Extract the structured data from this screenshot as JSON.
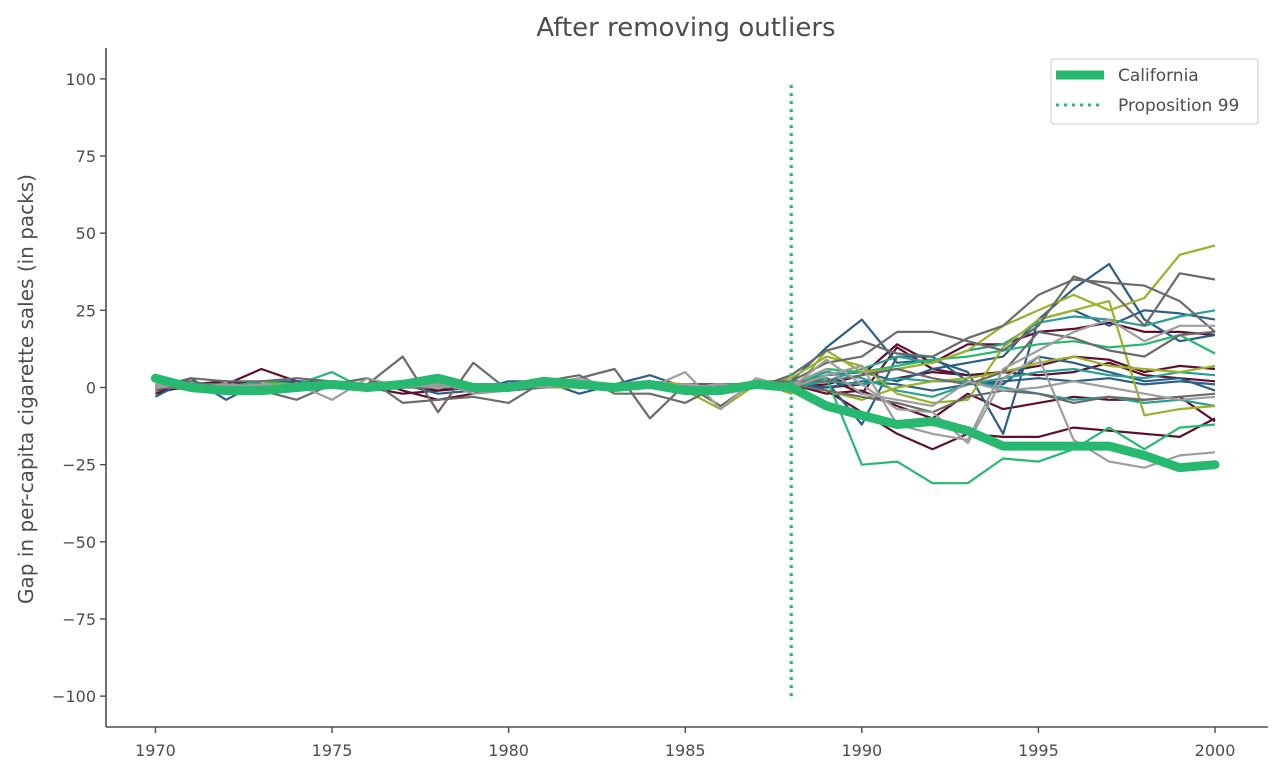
{
  "chart_data": {
    "type": "line",
    "title": "After removing outliers",
    "xlabel": "",
    "ylabel": "Gap in per-capita cigarette sales (in packs)",
    "xlim": [
      1968.6,
      2001.5
    ],
    "ylim": [
      -110,
      110
    ],
    "x_ticks": [
      "1970",
      "1975",
      "1980",
      "1985",
      "1990",
      "1995",
      "2000"
    ],
    "x_tick_values": [
      1970,
      1975,
      1980,
      1985,
      1990,
      1995,
      2000
    ],
    "y_ticks": [
      "−100",
      "−75",
      "−50",
      "−25",
      "0",
      "25",
      "50",
      "75",
      "100"
    ],
    "y_tick_values": [
      -100,
      -75,
      -50,
      -25,
      0,
      25,
      50,
      75,
      100
    ],
    "grid": false,
    "legend_position": "top-right",
    "x": [
      1970,
      1971,
      1972,
      1973,
      1974,
      1975,
      1976,
      1977,
      1978,
      1979,
      1980,
      1981,
      1982,
      1983,
      1984,
      1985,
      1986,
      1987,
      1988,
      1989,
      1990,
      1991,
      1992,
      1993,
      1994,
      1995,
      1996,
      1997,
      1998,
      1999,
      2000
    ],
    "highlight": {
      "name": "California",
      "color": "#27b96f",
      "values": [
        3,
        0,
        -1,
        -1,
        0,
        1,
        0,
        1,
        3,
        0,
        0,
        2,
        1,
        0,
        1,
        -1,
        -1,
        1,
        0,
        -6,
        -9,
        -12,
        -11,
        -14,
        -19,
        -19,
        -19,
        -19,
        -22,
        -26,
        -25
      ]
    },
    "intervention": {
      "name": "Proposition 99",
      "x": 1988,
      "y_range": [
        -100,
        98
      ],
      "color": "#27b96f"
    },
    "series": [
      {
        "color": "#5e0f2e",
        "values": [
          -1,
          0,
          1,
          6,
          2,
          1,
          3,
          -1,
          -4,
          -2,
          1,
          1,
          2,
          1,
          0,
          -1,
          0,
          1,
          2,
          -1,
          -8,
          -15,
          -20,
          -15,
          -16,
          -16,
          -13,
          -14,
          -15,
          -16,
          -10
        ]
      },
      {
        "color": "#5e0f2e",
        "values": [
          0,
          1,
          1,
          0,
          2,
          1,
          0,
          -2,
          -1,
          0,
          1,
          1,
          0,
          1,
          1,
          0,
          0,
          1,
          1,
          3,
          -2,
          13,
          6,
          4,
          5,
          4,
          5,
          8,
          4,
          3,
          2
        ]
      },
      {
        "color": "#5e0f2e",
        "values": [
          -2,
          1,
          2,
          1,
          0,
          1,
          1,
          1,
          0,
          0,
          0,
          0,
          1,
          1,
          0,
          0,
          1,
          1,
          1,
          -2,
          -1,
          -6,
          -10,
          -2,
          -7,
          -5,
          -3,
          -4,
          -4,
          -3,
          -11
        ]
      },
      {
        "color": "#5e0f2e",
        "values": [
          0,
          0,
          -1,
          1,
          1,
          2,
          0,
          1,
          -1,
          1,
          0,
          1,
          0,
          1,
          1,
          1,
          1,
          1,
          0,
          1,
          4,
          14,
          8,
          14,
          14,
          18,
          19,
          21,
          18,
          18,
          17
        ]
      },
      {
        "color": "#5e0f2e",
        "values": [
          1,
          0,
          0,
          1,
          0,
          1,
          1,
          0,
          1,
          0,
          1,
          0,
          1,
          0,
          1,
          0,
          1,
          0,
          1,
          0,
          1,
          3,
          5,
          4,
          5,
          7,
          10,
          9,
          5,
          7,
          6
        ]
      },
      {
        "color": "#2b5f85",
        "values": [
          -3,
          3,
          -4,
          2,
          2,
          2,
          0,
          1,
          -2,
          -1,
          2,
          2,
          -2,
          1,
          4,
          0,
          -1,
          1,
          2,
          13,
          22,
          8,
          9,
          5,
          -15,
          22,
          32,
          40,
          22,
          15,
          17
        ]
      },
      {
        "color": "#2b5f85",
        "values": [
          1,
          0,
          1,
          0,
          1,
          0,
          1,
          0,
          1,
          0,
          1,
          0,
          1,
          0,
          1,
          0,
          1,
          0,
          1,
          2,
          -12,
          10,
          10,
          2,
          1,
          10,
          8,
          5,
          2,
          3,
          -1
        ]
      },
      {
        "color": "#2b5f85",
        "values": [
          0,
          1,
          1,
          0,
          1,
          1,
          0,
          1,
          1,
          0,
          0,
          1,
          1,
          0,
          1,
          0,
          0,
          1,
          1,
          4,
          5,
          2,
          6,
          8,
          10,
          22,
          25,
          20,
          25,
          24,
          22
        ]
      },
      {
        "color": "#2b5f85",
        "values": [
          0,
          0,
          1,
          1,
          0,
          0,
          1,
          1,
          0,
          0,
          1,
          1,
          0,
          0,
          1,
          1,
          0,
          0,
          1,
          0,
          2,
          1,
          -1,
          1,
          2,
          3,
          2,
          3,
          1,
          2,
          1
        ]
      },
      {
        "color": "#2b9e95",
        "values": [
          0,
          1,
          0,
          2,
          1,
          0,
          1,
          0,
          1,
          1,
          0,
          1,
          0,
          1,
          0,
          1,
          0,
          1,
          0,
          2,
          6,
          10,
          8,
          12,
          14,
          21,
          23,
          22,
          20,
          23,
          25
        ]
      },
      {
        "color": "#2b9e95",
        "values": [
          1,
          0,
          1,
          0,
          1,
          1,
          0,
          1,
          0,
          1,
          1,
          0,
          1,
          0,
          1,
          1,
          0,
          1,
          1,
          5,
          3,
          -1,
          -3,
          1,
          3,
          5,
          6,
          4,
          3,
          5,
          4
        ]
      },
      {
        "color": "#2b9e95",
        "values": [
          0,
          1,
          0,
          1,
          0,
          1,
          1,
          0,
          1,
          0,
          1,
          0,
          1,
          1,
          0,
          0,
          1,
          0,
          1,
          2,
          1,
          3,
          2,
          2,
          0,
          -2,
          -4,
          -3,
          -5,
          -4,
          -6
        ]
      },
      {
        "color": "#27b96f",
        "values": [
          1,
          -1,
          0,
          2,
          1,
          5,
          -1,
          2,
          0,
          1,
          1,
          3,
          0,
          1,
          1,
          0,
          1,
          0,
          2,
          3,
          -25,
          -24,
          -31,
          -31,
          -23,
          -24,
          -20,
          -13,
          -20,
          -13,
          -12
        ]
      },
      {
        "color": "#27b96f",
        "values": [
          0,
          1,
          1,
          0,
          1,
          0,
          1,
          1,
          0,
          1,
          0,
          1,
          1,
          0,
          1,
          0,
          1,
          1,
          0,
          6,
          5,
          7,
          9,
          10,
          12,
          14,
          15,
          13,
          14,
          17,
          11
        ]
      },
      {
        "color": "#9ab22a",
        "values": [
          0,
          0,
          1,
          0,
          1,
          0,
          0,
          1,
          0,
          1,
          0,
          0,
          1,
          0,
          1,
          -1,
          -7,
          1,
          3,
          10,
          7,
          -2,
          -5,
          -4,
          13,
          22,
          25,
          28,
          -9,
          -7,
          -6
        ]
      },
      {
        "color": "#9ab22a",
        "values": [
          1,
          0,
          0,
          1,
          1,
          0,
          1,
          0,
          0,
          1,
          1,
          0,
          0,
          1,
          2,
          1,
          0,
          2,
          -2,
          12,
          5,
          6,
          8,
          12,
          20,
          25,
          30,
          25,
          29,
          43,
          46
        ]
      },
      {
        "color": "#9ab22a",
        "values": [
          0,
          1,
          0,
          0,
          1,
          1,
          0,
          0,
          1,
          1,
          0,
          0,
          1,
          1,
          0,
          0,
          1,
          0,
          1,
          -1,
          -4,
          0,
          2,
          3,
          5,
          8,
          10,
          7,
          6,
          5,
          7
        ]
      },
      {
        "color": "#6b6b6b",
        "values": [
          0,
          3,
          2,
          2,
          3,
          2,
          1,
          10,
          -8,
          8,
          -1,
          0,
          3,
          6,
          -10,
          1,
          -6,
          2,
          2,
          8,
          10,
          18,
          18,
          15,
          12,
          20,
          36,
          32,
          20,
          37,
          35
        ]
      },
      {
        "color": "#6b6b6b",
        "values": [
          -1,
          2,
          0,
          -1,
          -4,
          1,
          3,
          -5,
          -4,
          -3,
          -5,
          2,
          4,
          -2,
          -2,
          -5,
          1,
          0,
          4,
          12,
          15,
          11,
          10,
          16,
          20,
          30,
          35,
          34,
          33,
          28,
          18
        ]
      },
      {
        "color": "#6b6b6b",
        "values": [
          0,
          1,
          1,
          0,
          1,
          1,
          0,
          0,
          1,
          0,
          1,
          1,
          0,
          1,
          0,
          1,
          0,
          1,
          2,
          2,
          4,
          6,
          3,
          1,
          5,
          18,
          16,
          12,
          10,
          17,
          18
        ]
      },
      {
        "color": "#6b6b6b",
        "values": [
          0,
          0,
          1,
          0,
          0,
          1,
          1,
          0,
          0,
          1,
          0,
          0,
          1,
          0,
          1,
          0,
          1,
          0,
          1,
          -1,
          -3,
          -5,
          -8,
          -3,
          -1,
          -2,
          -5,
          -3,
          -4,
          -3,
          -2
        ]
      },
      {
        "color": "#9e9e9e",
        "values": [
          1,
          0,
          -1,
          0,
          1,
          -4,
          3,
          0,
          2,
          -2,
          -1,
          1,
          3,
          0,
          0,
          5,
          -7,
          3,
          0,
          9,
          1,
          -7,
          -8,
          -18,
          3,
          10,
          -17,
          -24,
          -26,
          -22,
          -21
        ]
      },
      {
        "color": "#9e9e9e",
        "values": [
          0,
          1,
          0,
          1,
          0,
          1,
          0,
          1,
          0,
          1,
          0,
          1,
          0,
          1,
          0,
          1,
          0,
          1,
          0,
          4,
          7,
          -12,
          -15,
          -17,
          6,
          12,
          18,
          22,
          15,
          20,
          20
        ]
      },
      {
        "color": "#9e9e9e",
        "values": [
          1,
          0,
          1,
          0,
          1,
          0,
          1,
          0,
          1,
          0,
          1,
          0,
          1,
          0,
          1,
          0,
          1,
          0,
          1,
          6,
          -2,
          -4,
          -6,
          2,
          -1,
          0,
          2,
          0,
          -2,
          -4,
          -3
        ]
      }
    ]
  }
}
